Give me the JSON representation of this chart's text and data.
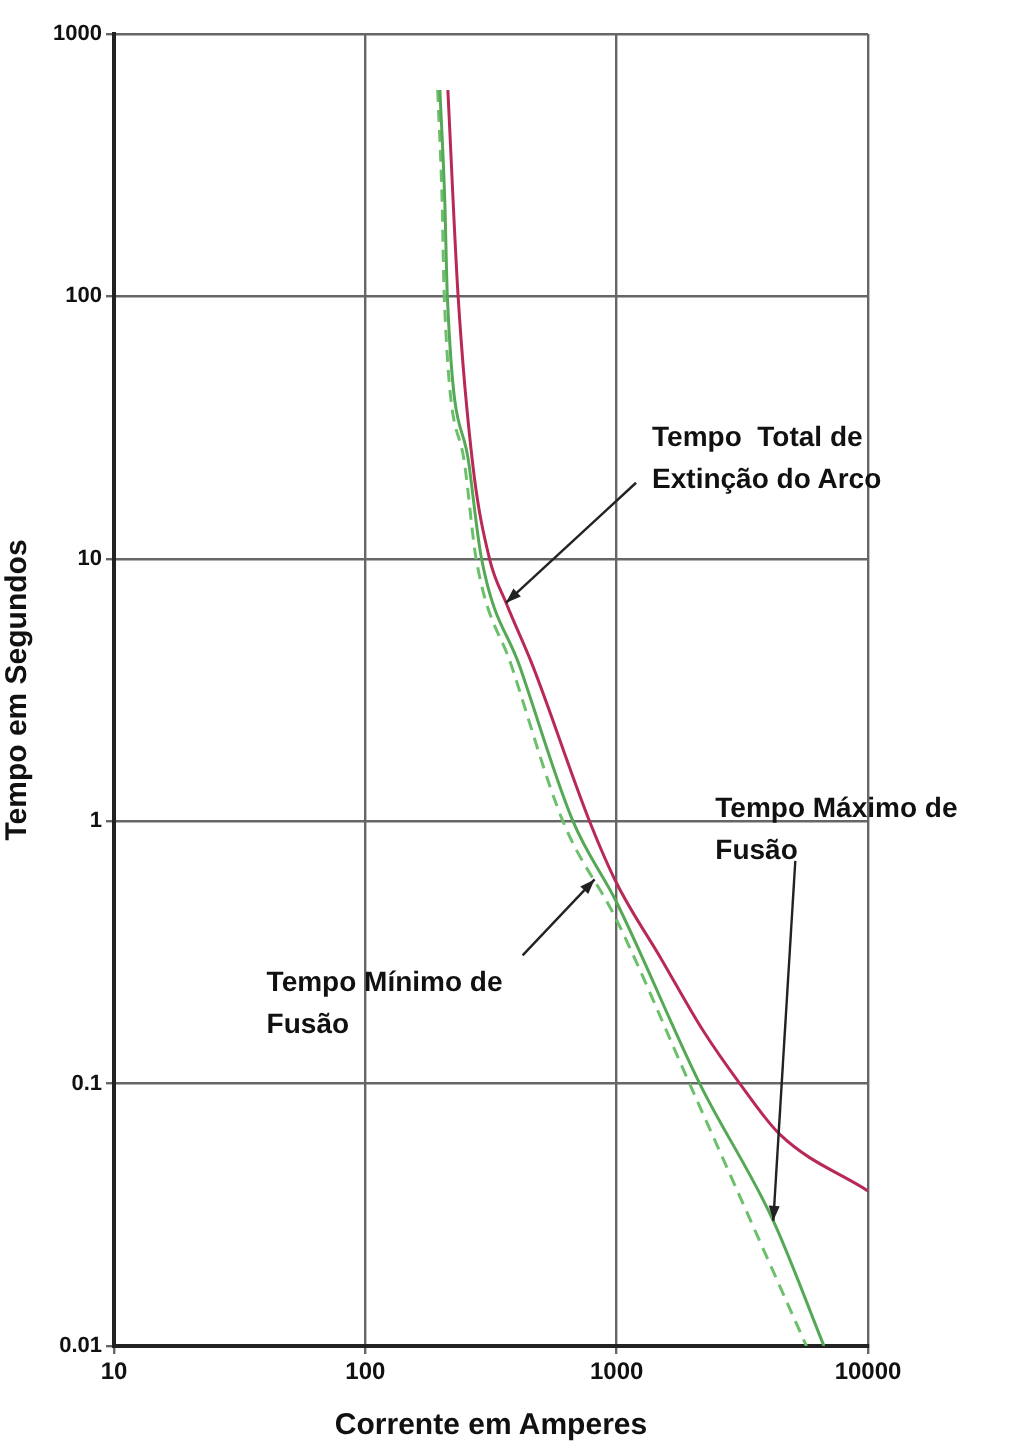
{
  "chart_data": {
    "type": "line",
    "xlabel": "Corrente em Amperes",
    "ylabel": "Tempo em Segundos",
    "log": "xy",
    "xlim": [
      10,
      10000
    ],
    "ylim": [
      0.01,
      1000
    ],
    "xticks": [
      10,
      100,
      1000,
      10000
    ],
    "yticks": [
      0.01,
      0.1,
      1,
      10,
      100,
      1000
    ],
    "grid": true,
    "legend": false,
    "marker": "none",
    "series": [
      {
        "color": "#b82a55",
        "line_style": "solid",
        "x": [
          213,
          234,
          268,
          312,
          363,
          464,
          780,
          1000,
          1500,
          2200,
          3090,
          4460,
          10000
        ],
        "values": [
          612,
          100,
          22.6,
          10,
          6.8,
          3.9,
          1,
          0.58,
          0.3,
          0.16,
          0.1,
          0.064,
          0.039
        ]
      },
      {
        "color": "#55a855",
        "line_style": "solid",
        "x": [
          198,
          207,
          212,
          259,
          290,
          411,
          670,
          1000,
          2140,
          4200,
          6680
        ],
        "values": [
          612,
          233,
          100,
          22.6,
          10,
          3.9,
          1,
          0.49,
          0.1,
          0.03,
          0.01
        ]
      },
      {
        "color": "#6cc06c",
        "line_style": "dashed",
        "x": [
          194,
          202,
          206,
          249,
          276,
          382,
          611,
          1000,
          1950,
          5690
        ],
        "values": [
          612,
          233,
          100,
          22.6,
          10,
          3.9,
          1,
          0.42,
          0.1,
          0.01
        ]
      }
    ],
    "annotations": [
      {
        "text": "Tempo  Total de\nExtinção do Arco",
        "x": 363,
        "y": 6.8
      },
      {
        "text": "Tempo Mínimo de\nFusão",
        "x": 817,
        "y": 0.6
      },
      {
        "text": "Tempo Máximo de\nFusão",
        "x": 4200,
        "y": 0.03
      }
    ]
  }
}
